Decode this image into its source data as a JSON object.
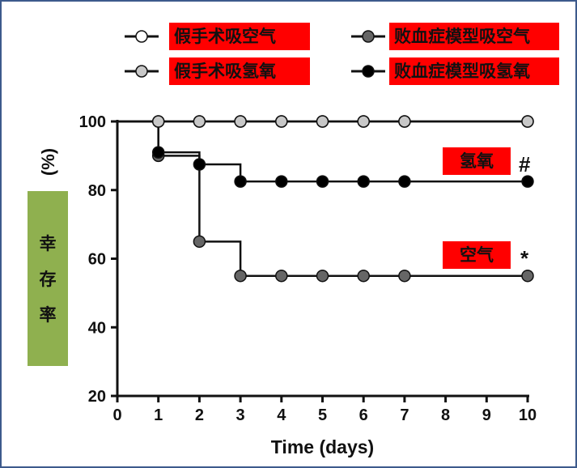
{
  "legend": [
    {
      "label": "假手术吸空气",
      "fill": "#ffffff"
    },
    {
      "label": "假手术吸氢氧",
      "fill": "#c8c8c8"
    },
    {
      "label": "败血症模型吸空气",
      "fill": "#666666"
    },
    {
      "label": "败血症模型吸氢氧",
      "fill": "#000000"
    }
  ],
  "annotations": {
    "hydrogen": {
      "label": "氢氧",
      "mark": "#"
    },
    "air": {
      "label": "空气",
      "mark": "*"
    }
  },
  "y_label_chars": [
    "幸",
    "存",
    "率"
  ],
  "y_unit": "(%)",
  "label_color": "#ff0000",
  "chart_data": {
    "type": "line",
    "xlabel": "Time (days)",
    "ylabel": "幸存率 (%)",
    "x_ticks": [
      0,
      1,
      2,
      3,
      4,
      5,
      6,
      7,
      8,
      9,
      10
    ],
    "y_ticks": [
      20,
      40,
      60,
      80,
      100
    ],
    "xlim": [
      0,
      10
    ],
    "ylim": [
      20,
      100
    ],
    "step": true,
    "series": [
      {
        "name": "假手术吸空气",
        "color": "#ffffff",
        "x": [
          0,
          1,
          2,
          3,
          4,
          5,
          6,
          7,
          10
        ],
        "y": [
          100,
          100,
          100,
          100,
          100,
          100,
          100,
          100,
          100
        ]
      },
      {
        "name": "假手术吸氢氧",
        "color": "#c8c8c8",
        "x": [
          1,
          2,
          3,
          4,
          5,
          6,
          7,
          10
        ],
        "y": [
          100,
          100,
          100,
          100,
          100,
          100,
          100,
          100
        ]
      },
      {
        "name": "败血症模型吸空气",
        "color": "#666666",
        "x": [
          0,
          1,
          2,
          3,
          4,
          5,
          6,
          7,
          10
        ],
        "y": [
          100,
          90,
          65,
          55,
          55,
          55,
          55,
          55,
          55
        ]
      },
      {
        "name": "败血症模型吸氢氧",
        "color": "#000000",
        "x": [
          0,
          1,
          2,
          3,
          4,
          5,
          6,
          7,
          10
        ],
        "y": [
          100,
          91,
          87.5,
          82.5,
          82.5,
          82.5,
          82.5,
          82.5,
          82.5
        ]
      }
    ]
  }
}
